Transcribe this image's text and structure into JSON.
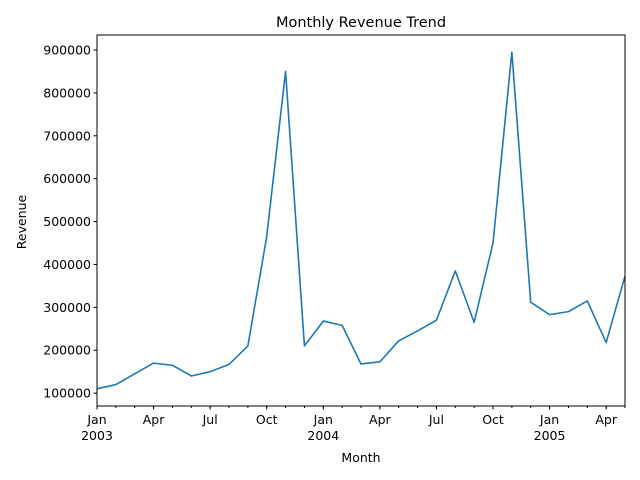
{
  "chart_data": {
    "type": "line",
    "title": "Monthly Revenue Trend",
    "xlabel": "Month",
    "ylabel": "Revenue",
    "color": "#1f77b4",
    "grid": false,
    "x": [
      "2003-01",
      "2003-02",
      "2003-03",
      "2003-04",
      "2003-05",
      "2003-06",
      "2003-07",
      "2003-08",
      "2003-09",
      "2003-10",
      "2003-11",
      "2003-12",
      "2004-01",
      "2004-02",
      "2004-03",
      "2004-04",
      "2004-05",
      "2004-06",
      "2004-07",
      "2004-08",
      "2004-09",
      "2004-10",
      "2004-11",
      "2004-12",
      "2005-01",
      "2005-02",
      "2005-03",
      "2005-04",
      "2005-05"
    ],
    "series": [
      {
        "values": [
          110000,
          120000,
          145000,
          170000,
          165000,
          140000,
          150000,
          167000,
          210000,
          465000,
          850000,
          210000,
          268000,
          258000,
          168000,
          173000,
          222000,
          245000,
          270000,
          385000,
          265000,
          450000,
          895000,
          312000,
          283000,
          290000,
          315000,
          218000,
          373000
        ]
      }
    ],
    "ylim": [
      70000,
      935000
    ],
    "yticks": [
      100000,
      200000,
      300000,
      400000,
      500000,
      600000,
      700000,
      800000,
      900000
    ],
    "ytick_labels": [
      "100000",
      "200000",
      "300000",
      "400000",
      "500000",
      "600000",
      "700000",
      "800000",
      "900000"
    ],
    "xticks": [
      {
        "month": "2003-01",
        "label": "Jan",
        "year": "2003"
      },
      {
        "month": "2003-04",
        "label": "Apr",
        "year": ""
      },
      {
        "month": "2003-07",
        "label": "Jul",
        "year": ""
      },
      {
        "month": "2003-10",
        "label": "Oct",
        "year": ""
      },
      {
        "month": "2004-01",
        "label": "Jan",
        "year": "2004"
      },
      {
        "month": "2004-04",
        "label": "Apr",
        "year": ""
      },
      {
        "month": "2004-07",
        "label": "Jul",
        "year": ""
      },
      {
        "month": "2004-10",
        "label": "Oct",
        "year": ""
      },
      {
        "month": "2005-01",
        "label": "Jan",
        "year": "2005"
      },
      {
        "month": "2005-04",
        "label": "Apr",
        "year": ""
      }
    ]
  }
}
